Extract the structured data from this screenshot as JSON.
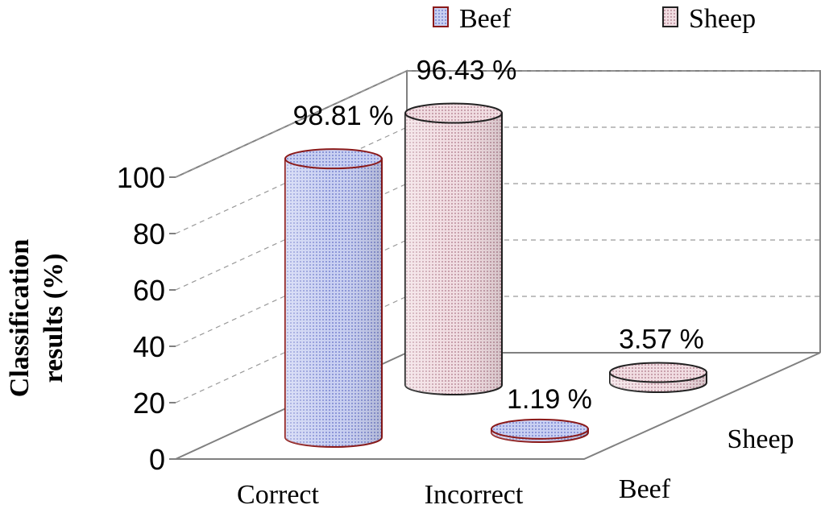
{
  "chart_data": {
    "type": "bar",
    "style": "3d-cylinder",
    "categories": [
      "Correct",
      "Incorrect"
    ],
    "depth_categories": [
      "Beef",
      "Sheep"
    ],
    "series": [
      {
        "name": "Beef",
        "values": [
          98.81,
          1.19
        ],
        "labels": [
          "98.81 %",
          "1.19 %"
        ],
        "color": "#aab4e8",
        "edge": "#8b1a1a"
      },
      {
        "name": "Sheep",
        "values": [
          96.43,
          3.57
        ],
        "labels": [
          "96.43 %",
          "3.57 %"
        ],
        "color": "#e8c8d0",
        "edge": "#222222"
      }
    ],
    "ylabel_line1": "Classification",
    "ylabel_line2": "results (%)",
    "yticks": [
      "0",
      "20",
      "40",
      "60",
      "80",
      "100"
    ],
    "ylim": [
      0,
      100
    ],
    "legend": [
      "Beef",
      "Sheep"
    ],
    "legend_position": "top"
  }
}
